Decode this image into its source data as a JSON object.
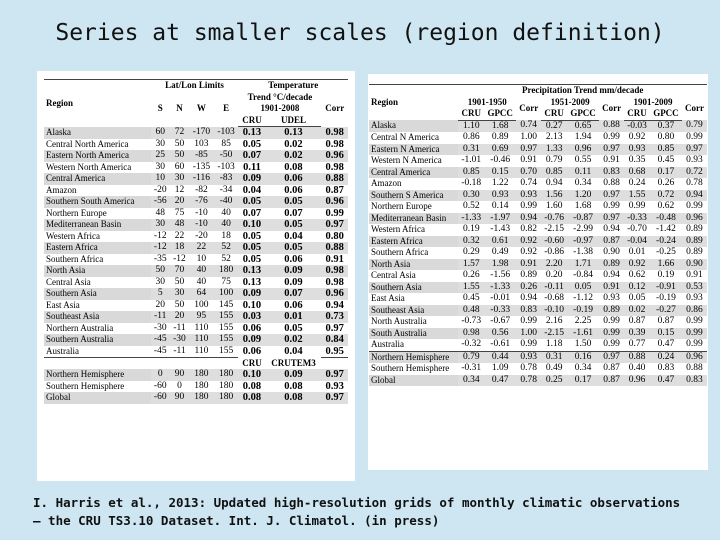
{
  "title": "Series at smaller scales (region definition)",
  "citation_line1": "I. Harris et al., 2013: Updated high-resolution grids of monthly climatic observations",
  "citation_line2": "– the CRU TS3.10 Dataset. Int. J. Climatol. (in press)",
  "left": {
    "h_region": "Region",
    "h_latlon": "Lat/Lon Limits",
    "h_temp": "Temperature",
    "h_trend": "Trend °C/decade",
    "h_period": "1901-2008",
    "h_s": "S",
    "h_n": "N",
    "h_w": "W",
    "h_e": "E",
    "h_cru": "CRU",
    "h_udel": "UDEL",
    "h_corr": "Corr",
    "h_cru2": "CRU",
    "h_crutem": "CRUTEM3",
    "rows": [
      [
        "Alaska",
        "60",
        "72",
        "-170",
        "-103",
        "0.13",
        "0.13",
        "0.98"
      ],
      [
        "Central North America",
        "30",
        "50",
        "103",
        "85",
        "0.05",
        "0.02",
        "0.98"
      ],
      [
        "Eastern North America",
        "25",
        "50",
        "-85",
        "-50",
        "0.07",
        "0.02",
        "0.96"
      ],
      [
        "Western North America",
        "30",
        "60",
        "-135",
        "-103",
        "0.11",
        "0.08",
        "0.98"
      ],
      [
        "Central America",
        "10",
        "30",
        "-116",
        "-83",
        "0.09",
        "0.06",
        "0.88"
      ],
      [
        "Amazon",
        "-20",
        "12",
        "-82",
        "-34",
        "0.04",
        "0.06",
        "0.87"
      ],
      [
        "Southern South America",
        "-56",
        "20",
        "-76",
        "-40",
        "0.05",
        "0.05",
        "0.96"
      ],
      [
        "Northern Europe",
        "48",
        "75",
        "-10",
        "40",
        "0.07",
        "0.07",
        "0.99"
      ],
      [
        "Mediterranean Basin",
        "30",
        "48",
        "-10",
        "40",
        "0.10",
        "0.05",
        "0.97"
      ],
      [
        "Western Africa",
        "-12",
        "22",
        "-20",
        "18",
        "0.05",
        "0.04",
        "0.80"
      ],
      [
        "Eastern Africa",
        "-12",
        "18",
        "22",
        "52",
        "0.05",
        "0.05",
        "0.88"
      ],
      [
        "Southern Africa",
        "-35",
        "-12",
        "10",
        "52",
        "0.05",
        "0.06",
        "0.91"
      ],
      [
        "North Asia",
        "50",
        "70",
        "40",
        "180",
        "0.13",
        "0.09",
        "0.98"
      ],
      [
        "Central Asia",
        "30",
        "50",
        "40",
        "75",
        "0.13",
        "0.09",
        "0.98"
      ],
      [
        "Southern Asia",
        "5",
        "30",
        "64",
        "100",
        "0.09",
        "0.07",
        "0.96"
      ],
      [
        "East Asia",
        "20",
        "50",
        "100",
        "145",
        "0.10",
        "0.06",
        "0.94"
      ],
      [
        "Southeast Asia",
        "-11",
        "20",
        "95",
        "155",
        "0.03",
        "0.01",
        "0.73"
      ],
      [
        "Northern Australia",
        "-30",
        "-11",
        "110",
        "155",
        "0.06",
        "0.05",
        "0.97"
      ],
      [
        "Southern Australia",
        "-45",
        "-30",
        "110",
        "155",
        "0.09",
        "0.02",
        "0.84"
      ],
      [
        "Australia",
        "-45",
        "-11",
        "110",
        "155",
        "0.06",
        "0.04",
        "0.95"
      ]
    ],
    "rows2": [
      [
        "Northern Hemisphere",
        "0",
        "90",
        "180",
        "180",
        "0.10",
        "0.09",
        "0.97"
      ],
      [
        "Southern Hemisphere",
        "-60",
        "0",
        "180",
        "180",
        "0.08",
        "0.08",
        "0.93"
      ],
      [
        "Global",
        "-60",
        "90",
        "180",
        "180",
        "0.08",
        "0.08",
        "0.97"
      ]
    ]
  },
  "right": {
    "h_region": "Region",
    "h_precip": "Precipitation Trend mm/decade",
    "p1": "1901-1950",
    "p2": "1951-2009",
    "p3": "1901-2009",
    "h_cru": "CRU",
    "h_gpcc": "GPCC",
    "h_corr": "Corr",
    "rows": [
      [
        "Alaska",
        "1.10",
        "1.68",
        "0.74",
        "0.27",
        "0.65",
        "0.88",
        "-0.03",
        "0.37",
        "0.79"
      ],
      [
        "Central N America",
        "0.86",
        "0.89",
        "1.00",
        "2.13",
        "1.94",
        "0.99",
        "0.92",
        "0.80",
        "0.99"
      ],
      [
        "Eastern N America",
        "0.31",
        "0.69",
        "0.97",
        "1.33",
        "0.96",
        "0.97",
        "0.93",
        "0.85",
        "0.97"
      ],
      [
        "Western N America",
        "-1.01",
        "-0.46",
        "0.91",
        "0.79",
        "0.55",
        "0.91",
        "0.35",
        "0.45",
        "0.93"
      ],
      [
        "Central America",
        "0.85",
        "0.15",
        "0.70",
        "0.85",
        "0.11",
        "0.83",
        "0.68",
        "0.17",
        "0.72"
      ],
      [
        "Amazon",
        "-0.18",
        "1.22",
        "0.74",
        "0.94",
        "0.34",
        "0.88",
        "0.24",
        "0.26",
        "0.78"
      ],
      [
        "Southern S America",
        "0.30",
        "0.93",
        "0.93",
        "1.56",
        "1.20",
        "0.97",
        "1.55",
        "0.72",
        "0.94"
      ],
      [
        "Northern Europe",
        "0.52",
        "0.14",
        "0.99",
        "1.60",
        "1.68",
        "0.99",
        "0.99",
        "0.62",
        "0.99"
      ],
      [
        "Mediterranean Basin",
        "-1.33",
        "-1.97",
        "0.94",
        "-0.76",
        "-0.87",
        "0.97",
        "-0.33",
        "-0.48",
        "0.96"
      ],
      [
        "Western Africa",
        "0.19",
        "-1.43",
        "0.82",
        "-2.15",
        "-2.99",
        "0.94",
        "-0.70",
        "-1.42",
        "0.89"
      ],
      [
        "Eastern Africa",
        "0.32",
        "0.61",
        "0.92",
        "-0.60",
        "-0.97",
        "0.87",
        "-0.04",
        "-0.24",
        "0.89"
      ],
      [
        "Southern Africa",
        "0.29",
        "0.49",
        "0.92",
        "-0.86",
        "-1.38",
        "0.90",
        "0.01",
        "-0.25",
        "0.89"
      ],
      [
        "North Asia",
        "1.57",
        "1.98",
        "0.91",
        "2.20",
        "1.71",
        "0.89",
        "0.92",
        "1.66",
        "0.90"
      ],
      [
        "Central Asia",
        "0.26",
        "-1.56",
        "0.89",
        "0.20",
        "-0.84",
        "0.94",
        "0.62",
        "0.19",
        "0.91"
      ],
      [
        "Southern Asia",
        "1.55",
        "-1.33",
        "0.26",
        "-0.11",
        "0.05",
        "0.91",
        "0.12",
        "-0.91",
        "0.53"
      ],
      [
        "East Asia",
        "0.45",
        "-0.01",
        "0.94",
        "-0.68",
        "-1.12",
        "0.93",
        "0.05",
        "-0.19",
        "0.93"
      ],
      [
        "Southeast Asia",
        "0.48",
        "-0.33",
        "0.83",
        "-0.10",
        "-0.19",
        "0.89",
        "0.02",
        "-0.27",
        "0.86"
      ],
      [
        "North Australia",
        "-0.73",
        "-0.67",
        "0.99",
        "2.16",
        "2.25",
        "0.99",
        "0.87",
        "0.87",
        "0.99"
      ],
      [
        "South Australia",
        "0.98",
        "0.56",
        "1.00",
        "-2.15",
        "-1.61",
        "0.99",
        "0.39",
        "0.15",
        "0.99"
      ],
      [
        "Australia",
        "-0.32",
        "-0.61",
        "0.99",
        "1.18",
        "1.50",
        "0.99",
        "0.77",
        "0.47",
        "0.99"
      ],
      [
        "Northern Hemisphere",
        "0.79",
        "0.44",
        "0.93",
        "0.31",
        "0.16",
        "0.97",
        "0.88",
        "0.24",
        "0.96"
      ],
      [
        "Southern Hemisphere",
        "-0.31",
        "1.09",
        "0.78",
        "0.49",
        "0.34",
        "0.87",
        "0.40",
        "0.83",
        "0.88"
      ],
      [
        "Global",
        "0.34",
        "0.47",
        "0.78",
        "0.25",
        "0.17",
        "0.87",
        "0.96",
        "0.47",
        "0.83"
      ]
    ]
  }
}
